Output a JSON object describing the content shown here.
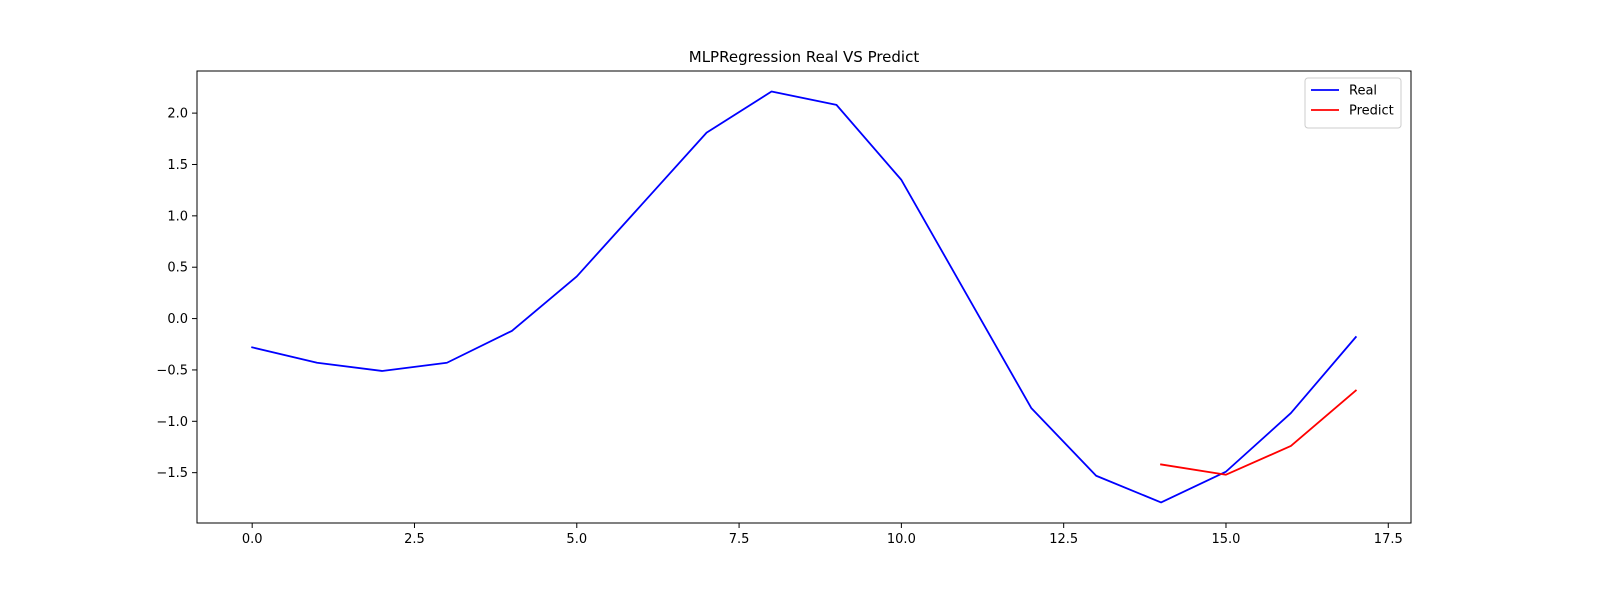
{
  "chart_data": {
    "type": "line",
    "title": "MLPRegression Real VS Predict",
    "xlabel": "",
    "ylabel": "",
    "xlim": [
      -0.85,
      17.85
    ],
    "ylim": [
      -1.99,
      2.41
    ],
    "x_ticks": [
      0.0,
      2.5,
      5.0,
      7.5,
      10.0,
      12.5,
      15.0,
      17.5
    ],
    "x_tick_labels": [
      "0.0",
      "2.5",
      "5.0",
      "7.5",
      "10.0",
      "12.5",
      "15.0",
      "17.5"
    ],
    "y_ticks": [
      -1.5,
      -1.0,
      -0.5,
      0.0,
      0.5,
      1.0,
      1.5,
      2.0
    ],
    "y_tick_labels": [
      "−1.5",
      "−1.0",
      "−0.5",
      "0.0",
      "0.5",
      "1.0",
      "1.5",
      "2.0"
    ],
    "grid": false,
    "legend_position": "top-right",
    "series": [
      {
        "name": "Real",
        "color": "#0000ff",
        "x": [
          0,
          1,
          2,
          3,
          4,
          5,
          6,
          7,
          8,
          9,
          10,
          11,
          12,
          13,
          14,
          15,
          16,
          17
        ],
        "values": [
          -0.28,
          -0.43,
          -0.51,
          -0.43,
          -0.12,
          0.41,
          1.11,
          1.81,
          2.21,
          2.08,
          1.35,
          0.24,
          -0.87,
          -1.53,
          -1.79,
          -1.49,
          -0.92,
          -0.18
        ]
      },
      {
        "name": "Predict",
        "color": "#ff0000",
        "x": [
          14,
          15,
          16,
          17
        ],
        "values": [
          -1.42,
          -1.52,
          -1.24,
          -0.7
        ]
      }
    ]
  }
}
